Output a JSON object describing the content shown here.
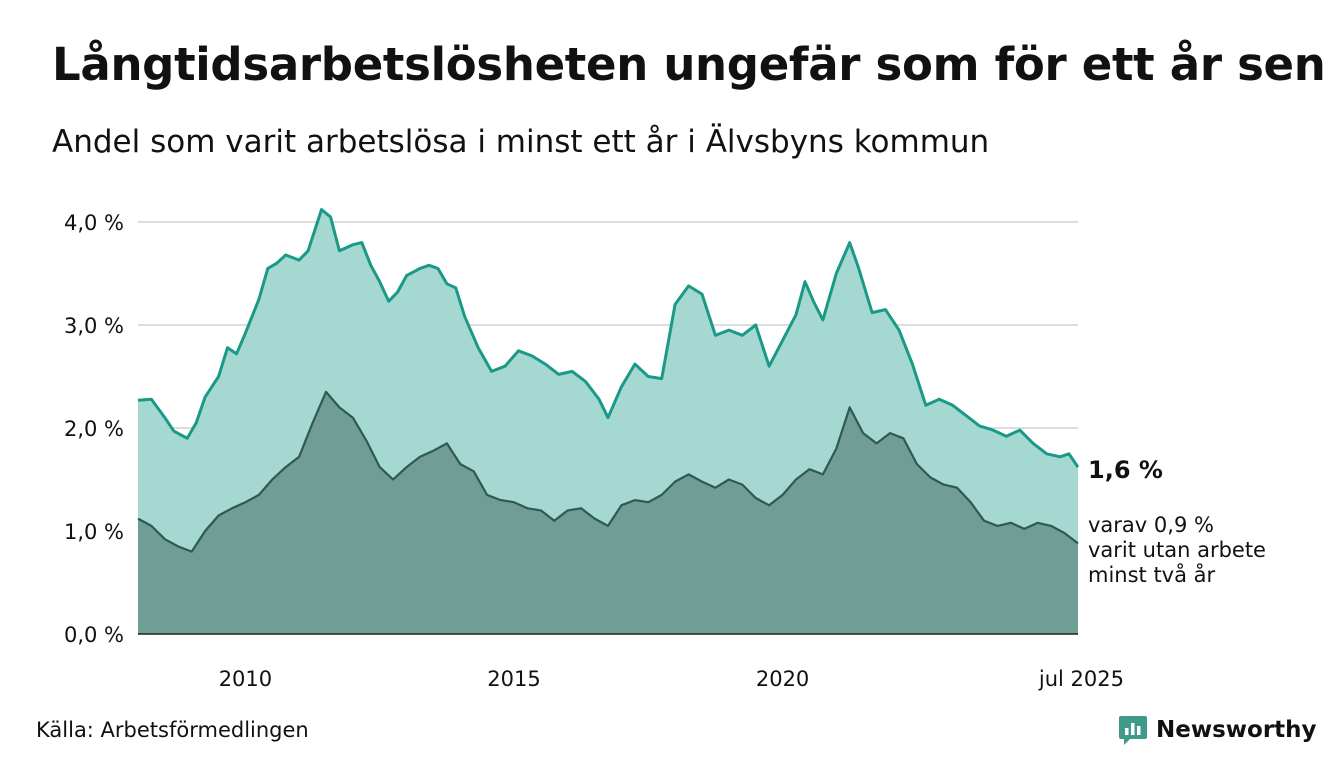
{
  "title": "Långtidsarbetslösheten ungefär som för ett år sen",
  "subtitle": "Andel som varit arbetslösa i minst ett år i Älvsbyns kommun",
  "source": "Källa: Arbetsförmedlingen",
  "brand": {
    "name": "Newsworthy",
    "icon": "newsworthy-logo-icon",
    "color": "#3f9a8a"
  },
  "colors": {
    "area_total": "#a5d8d1",
    "line_total": "#1a9a86",
    "area_two_years": "#709e96",
    "line_two_years": "#2e5a52",
    "grid": "#dddddd",
    "text": "#111111"
  },
  "chart_data": {
    "type": "area",
    "title": "Långtidsarbetslösheten ungefär som för ett år sen",
    "subtitle": "Andel som varit arbetslösa i minst ett år i Älvsbyns kommun",
    "xlabel": "",
    "ylabel": "",
    "xlim": [
      "2008-01",
      "2025-07"
    ],
    "ylim": [
      0,
      4.2
    ],
    "grid": true,
    "y_ticks": [
      {
        "value": 0,
        "label": "0,0 %"
      },
      {
        "value": 1,
        "label": "1,0 %"
      },
      {
        "value": 2,
        "label": "2,0 %"
      },
      {
        "value": 3,
        "label": "3,0 %"
      },
      {
        "value": 4,
        "label": "4,0 %"
      }
    ],
    "x_ticks": [
      {
        "value": "2010-01",
        "label": "2010"
      },
      {
        "value": "2015-01",
        "label": "2015"
      },
      {
        "value": "2020-01",
        "label": "2020"
      },
      {
        "value": "2025-07",
        "label": "jul 2025"
      }
    ],
    "end_labels": {
      "total": "1,6 %",
      "two_years": [
        "varav 0,9 %",
        "varit utan arbete",
        "minst två år"
      ]
    },
    "series": [
      {
        "key": "total",
        "points": [
          [
            "2008-01",
            2.27
          ],
          [
            "2008-04",
            2.28
          ],
          [
            "2008-07",
            2.1
          ],
          [
            "2008-09",
            1.97
          ],
          [
            "2008-12",
            1.9
          ],
          [
            "2009-02",
            2.05
          ],
          [
            "2009-04",
            2.3
          ],
          [
            "2009-07",
            2.5
          ],
          [
            "2009-09",
            2.78
          ],
          [
            "2009-11",
            2.72
          ],
          [
            "2010-01",
            2.92
          ],
          [
            "2010-04",
            3.25
          ],
          [
            "2010-06",
            3.55
          ],
          [
            "2010-08",
            3.6
          ],
          [
            "2010-10",
            3.68
          ],
          [
            "2011-01",
            3.63
          ],
          [
            "2011-03",
            3.72
          ],
          [
            "2011-06",
            4.12
          ],
          [
            "2011-08",
            4.05
          ],
          [
            "2011-10",
            3.72
          ],
          [
            "2012-01",
            3.78
          ],
          [
            "2012-03",
            3.8
          ],
          [
            "2012-05",
            3.58
          ],
          [
            "2012-07",
            3.42
          ],
          [
            "2012-09",
            3.23
          ],
          [
            "2012-11",
            3.32
          ],
          [
            "2013-01",
            3.48
          ],
          [
            "2013-04",
            3.55
          ],
          [
            "2013-06",
            3.58
          ],
          [
            "2013-08",
            3.55
          ],
          [
            "2013-10",
            3.4
          ],
          [
            "2013-12",
            3.36
          ],
          [
            "2014-02",
            3.08
          ],
          [
            "2014-05",
            2.78
          ],
          [
            "2014-08",
            2.55
          ],
          [
            "2014-11",
            2.6
          ],
          [
            "2015-02",
            2.75
          ],
          [
            "2015-05",
            2.7
          ],
          [
            "2015-08",
            2.62
          ],
          [
            "2015-11",
            2.52
          ],
          [
            "2016-02",
            2.55
          ],
          [
            "2016-05",
            2.45
          ],
          [
            "2016-08",
            2.28
          ],
          [
            "2016-10",
            2.1
          ],
          [
            "2017-01",
            2.4
          ],
          [
            "2017-04",
            2.62
          ],
          [
            "2017-07",
            2.5
          ],
          [
            "2017-10",
            2.48
          ],
          [
            "2018-01",
            3.2
          ],
          [
            "2018-04",
            3.38
          ],
          [
            "2018-07",
            3.3
          ],
          [
            "2018-10",
            2.9
          ],
          [
            "2019-01",
            2.95
          ],
          [
            "2019-04",
            2.9
          ],
          [
            "2019-07",
            3.0
          ],
          [
            "2019-10",
            2.6
          ],
          [
            "2020-01",
            2.85
          ],
          [
            "2020-04",
            3.1
          ],
          [
            "2020-06",
            3.42
          ],
          [
            "2020-08",
            3.22
          ],
          [
            "2020-10",
            3.05
          ],
          [
            "2021-01",
            3.5
          ],
          [
            "2021-04",
            3.8
          ],
          [
            "2021-06",
            3.55
          ],
          [
            "2021-09",
            3.12
          ],
          [
            "2021-12",
            3.15
          ],
          [
            "2022-03",
            2.95
          ],
          [
            "2022-06",
            2.62
          ],
          [
            "2022-09",
            2.22
          ],
          [
            "2022-12",
            2.28
          ],
          [
            "2023-03",
            2.22
          ],
          [
            "2023-06",
            2.12
          ],
          [
            "2023-09",
            2.02
          ],
          [
            "2023-12",
            1.98
          ],
          [
            "2024-03",
            1.92
          ],
          [
            "2024-06",
            1.98
          ],
          [
            "2024-09",
            1.85
          ],
          [
            "2024-12",
            1.75
          ],
          [
            "2025-03",
            1.72
          ],
          [
            "2025-05",
            1.75
          ],
          [
            "2025-07",
            1.62
          ]
        ]
      },
      {
        "key": "two_years",
        "points": [
          [
            "2008-01",
            1.12
          ],
          [
            "2008-04",
            1.05
          ],
          [
            "2008-07",
            0.92
          ],
          [
            "2008-10",
            0.85
          ],
          [
            "2009-01",
            0.8
          ],
          [
            "2009-04",
            1.0
          ],
          [
            "2009-07",
            1.15
          ],
          [
            "2009-10",
            1.22
          ],
          [
            "2010-01",
            1.28
          ],
          [
            "2010-04",
            1.35
          ],
          [
            "2010-07",
            1.5
          ],
          [
            "2010-10",
            1.62
          ],
          [
            "2011-01",
            1.72
          ],
          [
            "2011-04",
            2.05
          ],
          [
            "2011-07",
            2.35
          ],
          [
            "2011-10",
            2.2
          ],
          [
            "2012-01",
            2.1
          ],
          [
            "2012-04",
            1.88
          ],
          [
            "2012-07",
            1.62
          ],
          [
            "2012-10",
            1.5
          ],
          [
            "2013-01",
            1.62
          ],
          [
            "2013-04",
            1.72
          ],
          [
            "2013-07",
            1.78
          ],
          [
            "2013-10",
            1.85
          ],
          [
            "2014-01",
            1.65
          ],
          [
            "2014-04",
            1.58
          ],
          [
            "2014-07",
            1.35
          ],
          [
            "2014-10",
            1.3
          ],
          [
            "2015-01",
            1.28
          ],
          [
            "2015-04",
            1.22
          ],
          [
            "2015-07",
            1.2
          ],
          [
            "2015-10",
            1.1
          ],
          [
            "2016-01",
            1.2
          ],
          [
            "2016-04",
            1.22
          ],
          [
            "2016-07",
            1.12
          ],
          [
            "2016-10",
            1.05
          ],
          [
            "2017-01",
            1.25
          ],
          [
            "2017-04",
            1.3
          ],
          [
            "2017-07",
            1.28
          ],
          [
            "2017-10",
            1.35
          ],
          [
            "2018-01",
            1.48
          ],
          [
            "2018-04",
            1.55
          ],
          [
            "2018-07",
            1.48
          ],
          [
            "2018-10",
            1.42
          ],
          [
            "2019-01",
            1.5
          ],
          [
            "2019-04",
            1.45
          ],
          [
            "2019-07",
            1.32
          ],
          [
            "2019-10",
            1.25
          ],
          [
            "2020-01",
            1.35
          ],
          [
            "2020-04",
            1.5
          ],
          [
            "2020-07",
            1.6
          ],
          [
            "2020-10",
            1.55
          ],
          [
            "2021-01",
            1.8
          ],
          [
            "2021-04",
            2.2
          ],
          [
            "2021-07",
            1.95
          ],
          [
            "2021-10",
            1.85
          ],
          [
            "2022-01",
            1.95
          ],
          [
            "2022-04",
            1.9
          ],
          [
            "2022-07",
            1.65
          ],
          [
            "2022-10",
            1.52
          ],
          [
            "2023-01",
            1.45
          ],
          [
            "2023-04",
            1.42
          ],
          [
            "2023-07",
            1.28
          ],
          [
            "2023-10",
            1.1
          ],
          [
            "2024-01",
            1.05
          ],
          [
            "2024-04",
            1.08
          ],
          [
            "2024-07",
            1.02
          ],
          [
            "2024-10",
            1.08
          ],
          [
            "2025-01",
            1.05
          ],
          [
            "2025-04",
            0.98
          ],
          [
            "2025-07",
            0.88
          ]
        ]
      }
    ]
  }
}
